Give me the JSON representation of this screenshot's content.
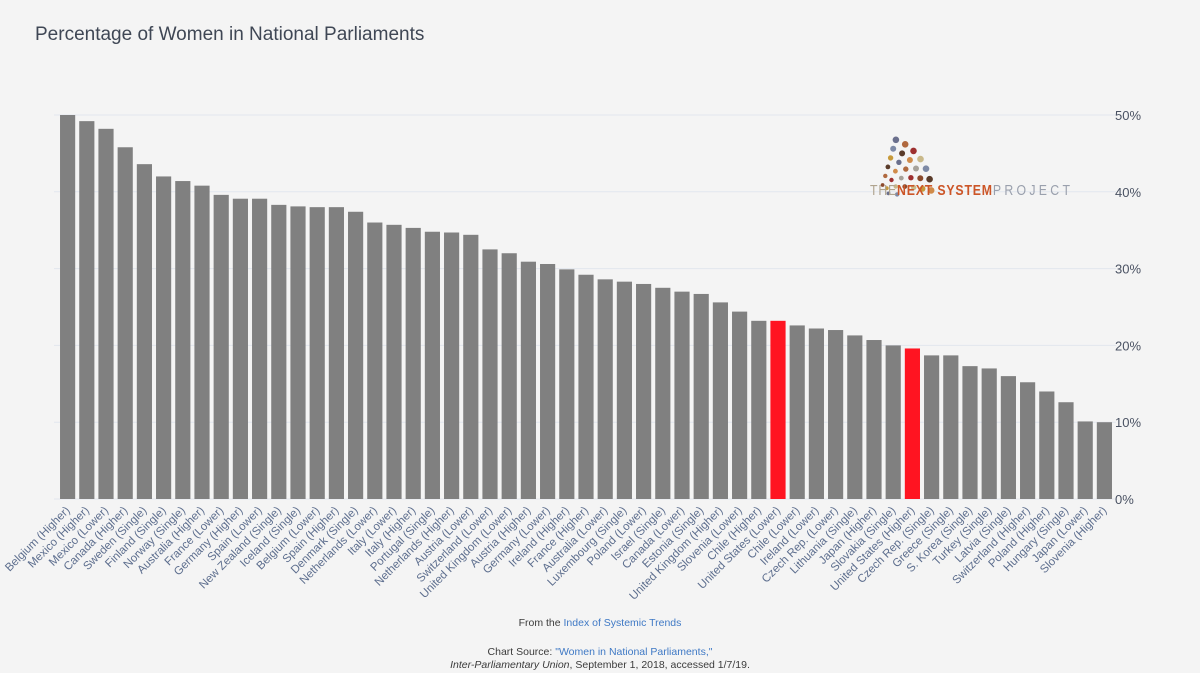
{
  "title": "Percentage of Women in National Parliaments",
  "logo": {
    "w1": "THE",
    "w2": "NEXT SYSTEM",
    "w3": "PROJECT"
  },
  "footer": {
    "line1_prefix": "From the ",
    "line1_link": "Index of Systemic Trends",
    "line2_prefix": "Chart Source: ",
    "line2_link": "\"Women in National Parliaments,\"",
    "line3_italic": "Inter-Parliamentary Union",
    "line3_rest": ", September 1, 2018, accessed 1/7/19."
  },
  "colors": {
    "bar": "#808080",
    "highlight": "#ff1421"
  },
  "chart_data": {
    "type": "bar",
    "title": "Percentage of Women in National Parliaments",
    "ylim": [
      0,
      50
    ],
    "yticks": [
      0,
      10,
      20,
      30,
      40,
      50
    ],
    "ytick_labels": [
      "0%",
      "10%",
      "20%",
      "30%",
      "40%",
      "50%"
    ],
    "y_axis_position": "right",
    "grid": true,
    "categories": [
      "Belgium (Higher)",
      "Mexico (Higher)",
      "Mexico (Lower)",
      "Canada (Higher)",
      "Sweden (Single)",
      "Finland (Single)",
      "Norway (Single)",
      "Australia (Higher)",
      "France (Lower)",
      "Germany (Higher)",
      "Spain (Lower)",
      "New Zealand (Single)",
      "Iceland (Single)",
      "Belgium (Lower)",
      "Spain (Higher)",
      "Denmark (Single)",
      "Netherlands (Lower)",
      "Italy (Lower)",
      "Italy (Higher)",
      "Portugal (Single)",
      "Netherlands (Higher)",
      "Austria (Lower)",
      "Switzerland (Lower)",
      "United Kingdom (Lower)",
      "Austria (Higher)",
      "Germany (Lower)",
      "Ireland (Higher)",
      "France (Higher)",
      "Australia (Lower)",
      "Luxembourg (Single)",
      "Poland (Lower)",
      "Israel (Single)",
      "Canada (Lower)",
      "Estonia (Single)",
      "United Kingdom (Higher)",
      "Slovenia (Lower)",
      "Chile (Higher)",
      "United States (Lower)",
      "Chile (Lower)",
      "Ireland (Lower)",
      "Czech Rep. (Lower)",
      "Lithuania (Single)",
      "Japan (Higher)",
      "Slovakia (Single)",
      "United States (Higher)",
      "Czech Rep. (Single)",
      "Greece (Single)",
      "S. Korea (Single)",
      "Turkey (Single)",
      "Latvia (Single)",
      "Switzerland (Higher)",
      "Poland (Higher)",
      "Hungary (Single)",
      "Japan (Lower)",
      "Slovenia (Higher)"
    ],
    "values": [
      50.0,
      49.2,
      48.2,
      45.8,
      43.6,
      42.0,
      41.4,
      40.8,
      39.6,
      39.1,
      39.1,
      38.3,
      38.1,
      38.0,
      38.0,
      37.4,
      36.0,
      35.7,
      35.3,
      34.8,
      34.7,
      34.4,
      32.5,
      32.0,
      30.9,
      30.6,
      29.9,
      29.2,
      28.6,
      28.3,
      28.0,
      27.5,
      27.0,
      26.7,
      25.6,
      24.4,
      23.2,
      23.2,
      22.6,
      22.2,
      22.0,
      21.3,
      20.7,
      20.0,
      19.6,
      18.7,
      18.7,
      17.3,
      17.0,
      16.0,
      15.2,
      14.0,
      12.6,
      10.1,
      10.0
    ],
    "highlight": [
      "United States (Lower)",
      "United States (Higher)"
    ]
  }
}
